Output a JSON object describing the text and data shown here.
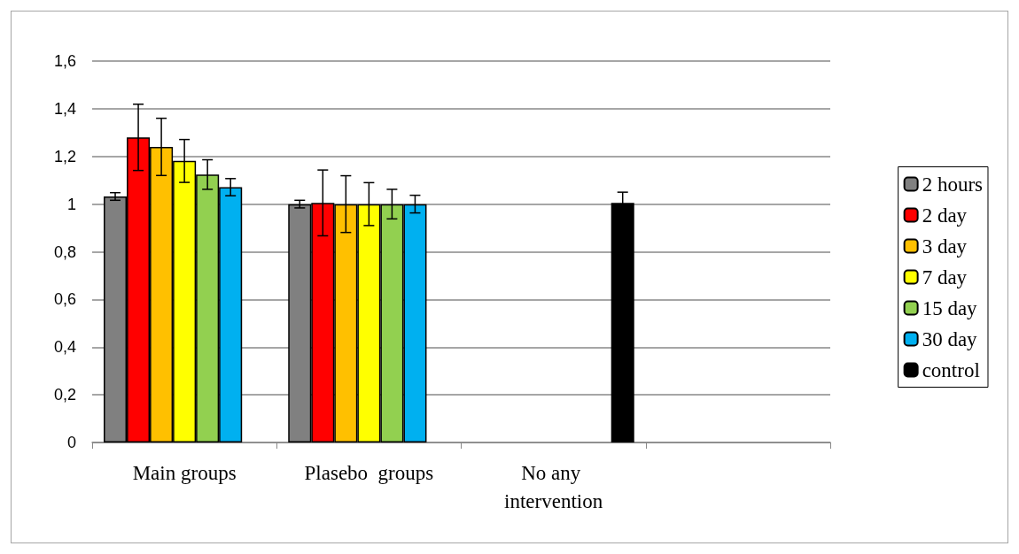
{
  "chart_data": {
    "type": "bar",
    "categories": [
      "Main groups",
      "Plasebo  groups",
      "No any intervention",
      null
    ],
    "series": [
      {
        "name": "2 hours",
        "color": "#808080",
        "values": [
          1.032,
          1.0,
          null,
          null
        ],
        "errors": [
          0.016,
          0.016,
          null,
          null
        ]
      },
      {
        "name": "2 day",
        "color": "#ff0000",
        "values": [
          1.28,
          1.005,
          null,
          null
        ],
        "errors": [
          0.139,
          0.138,
          null,
          null
        ]
      },
      {
        "name": "3 day",
        "color": "#ffc000",
        "values": [
          1.24,
          1.0,
          null,
          null
        ],
        "errors": [
          0.12,
          0.119,
          null,
          null
        ]
      },
      {
        "name": "7 day",
        "color": "#ffff00",
        "values": [
          1.181,
          1.0,
          null,
          null
        ],
        "errors": [
          0.09,
          0.09,
          null,
          null
        ]
      },
      {
        "name": "15 day",
        "color": "#92d050",
        "values": [
          1.124,
          1.0,
          null,
          null
        ],
        "errors": [
          0.062,
          0.062,
          null,
          null
        ]
      },
      {
        "name": "30 day",
        "color": "#00b0f0",
        "values": [
          1.071,
          1.0,
          null,
          null
        ],
        "errors": [
          0.036,
          0.037,
          null,
          null
        ]
      },
      {
        "name": "control",
        "color": "#000000",
        "values": [
          null,
          null,
          1.005,
          null
        ],
        "errors": [
          null,
          null,
          0.045,
          null
        ]
      }
    ],
    "ylim": [
      0,
      1.6
    ],
    "yticks": [
      0,
      {
        "value": 0.2,
        "label": "0,2"
      },
      {
        "value": 0.4,
        "label": "0,4"
      },
      {
        "value": 0.6,
        "label": "0,6"
      },
      {
        "value": 0.8,
        "label": "0,8"
      },
      1,
      {
        "value": 1.2,
        "label": "1,2"
      },
      {
        "value": 1.4,
        "label": "1,4"
      },
      {
        "value": 1.6,
        "label": "1,6"
      }
    ],
    "grid": "y",
    "legend": "right"
  }
}
